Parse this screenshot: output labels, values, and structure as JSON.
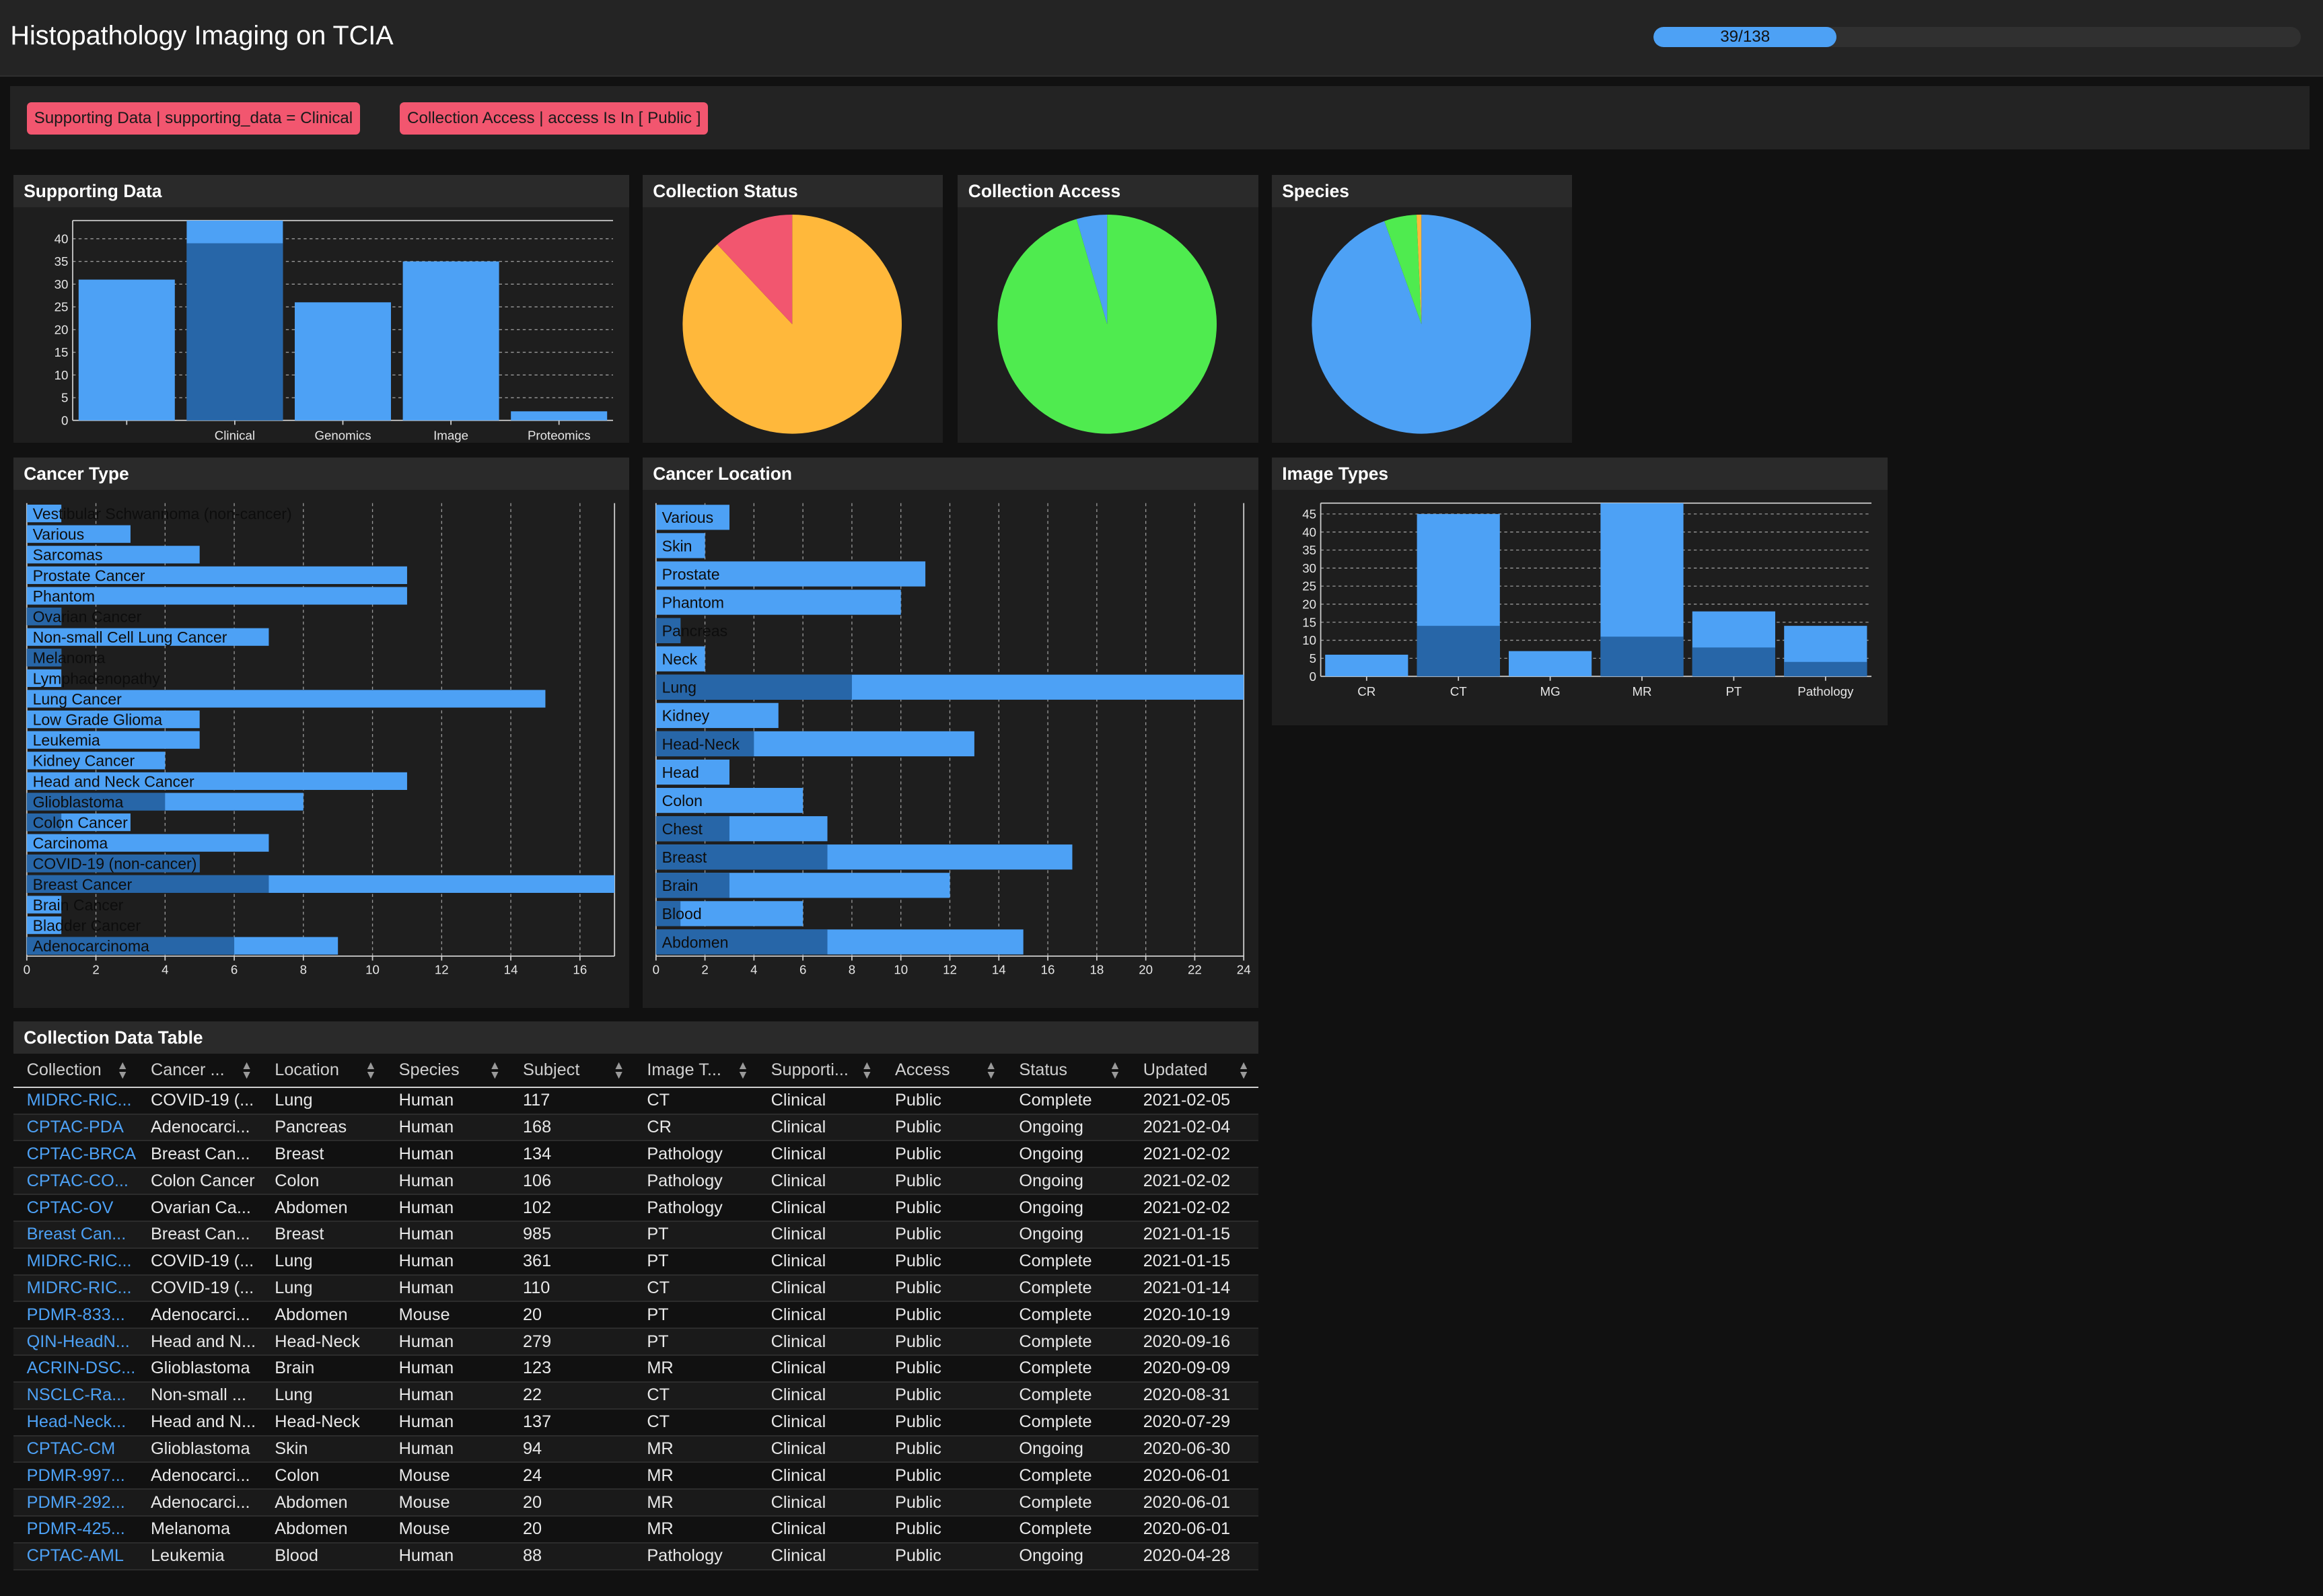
{
  "header": {
    "title": "Histopathology Imaging on TCIA",
    "progress_text": "39/138",
    "progress_value": 39,
    "progress_max": 138
  },
  "filters": [
    "Supporting Data | supporting_data = Clinical",
    "Collection Access | access Is In [ Public ]"
  ],
  "colors": {
    "blue": "#4da1f5",
    "dark_blue": "#2766a8",
    "orange": "#ffb83b",
    "pink": "#f2566f",
    "green": "#4feb4f",
    "chip": "#f2566f"
  },
  "supporting_data": {
    "title": "Supporting Data",
    "chart_data": {
      "type": "bar",
      "categories": [
        "",
        "Clinical",
        "Genomics",
        "Image",
        "Proteomics"
      ],
      "values": [
        31,
        44,
        26,
        35,
        2
      ],
      "highlight": [
        0,
        39,
        0,
        0,
        0
      ],
      "yticks": [
        0,
        5,
        10,
        15,
        20,
        25,
        30,
        35,
        40
      ],
      "ylim": [
        0,
        44
      ]
    }
  },
  "collection_status": {
    "title": "Collection Status",
    "chart_data": {
      "type": "pie",
      "slices": [
        {
          "value": 88,
          "color": "#ffb83b"
        },
        {
          "value": 12,
          "color": "#f2566f"
        }
      ]
    }
  },
  "collection_access": {
    "title": "Collection Access",
    "chart_data": {
      "type": "pie",
      "slices": [
        {
          "value": 95.5,
          "color": "#4feb4f"
        },
        {
          "value": 4.5,
          "color": "#4da1f5"
        }
      ]
    }
  },
  "species": {
    "title": "Species",
    "chart_data": {
      "type": "pie",
      "slices": [
        {
          "value": 94.5,
          "color": "#4da1f5"
        },
        {
          "value": 4.8,
          "color": "#4feb4f"
        },
        {
          "value": 0.7,
          "color": "#ffb83b"
        }
      ]
    }
  },
  "cancer_type": {
    "title": "Cancer Type",
    "chart_data": {
      "type": "bar",
      "orientation": "horizontal",
      "categories": [
        "Vestibular Schwannoma (non-cancer)",
        "Various",
        "Sarcomas",
        "Prostate Cancer",
        "Phantom",
        "Ovarian Cancer",
        "Non-small Cell Lung Cancer",
        "Melanoma",
        "Lymphadenopathy",
        "Lung Cancer",
        "Low Grade Glioma",
        "Leukemia",
        "Kidney Cancer",
        "Head and Neck Cancer",
        "Glioblastoma",
        "Colon Cancer",
        "Carcinoma",
        "COVID-19 (non-cancer)",
        "Breast Cancer",
        "Brain Cancer",
        "Bladder Cancer",
        "Adenocarcinoma"
      ],
      "values": [
        1,
        3,
        5,
        11,
        11,
        1,
        7,
        1,
        1,
        15,
        5,
        5,
        4,
        11,
        8,
        3,
        7,
        5,
        17,
        1,
        1,
        9
      ],
      "highlight": [
        0,
        0,
        0,
        0,
        0,
        1,
        0,
        1,
        0,
        0,
        0,
        0,
        0,
        0,
        4,
        1,
        0,
        5,
        7,
        0,
        0,
        6
      ],
      "xticks": [
        0,
        2,
        4,
        6,
        8,
        10,
        12,
        14,
        16
      ],
      "xlim": [
        0,
        17
      ]
    }
  },
  "cancer_location": {
    "title": "Cancer Location",
    "chart_data": {
      "type": "bar",
      "orientation": "horizontal",
      "categories": [
        "Various",
        "Skin",
        "Prostate",
        "Phantom",
        "Pancreas",
        "Neck",
        "Lung",
        "Kidney",
        "Head-Neck",
        "Head",
        "Colon",
        "Chest",
        "Breast",
        "Brain",
        "Blood",
        "Abdomen"
      ],
      "values": [
        3,
        2,
        11,
        10,
        1,
        2,
        24,
        5,
        13,
        3,
        6,
        7,
        17,
        12,
        6,
        15
      ],
      "highlight": [
        0,
        0,
        0,
        0,
        1,
        0,
        8,
        0,
        4,
        0,
        0,
        3,
        7,
        3,
        1,
        7
      ],
      "xticks": [
        0,
        2,
        4,
        6,
        8,
        10,
        12,
        14,
        16,
        18,
        20,
        22,
        24
      ],
      "xlim": [
        0,
        24
      ]
    }
  },
  "image_types": {
    "title": "Image Types",
    "chart_data": {
      "type": "bar",
      "categories": [
        "CR",
        "CT",
        "MG",
        "MR",
        "PT",
        "Pathology"
      ],
      "values": [
        6,
        45,
        7,
        48,
        18,
        14
      ],
      "highlight": [
        0,
        14,
        0,
        11,
        8,
        4
      ],
      "yticks": [
        0,
        5,
        10,
        15,
        20,
        25,
        30,
        35,
        40,
        45
      ],
      "ylim": [
        0,
        48
      ]
    }
  },
  "table": {
    "title": "Collection Data Table",
    "columns": [
      "Collection",
      "Cancer ...",
      "Location",
      "Species",
      "Subject",
      "Image T...",
      "Supporti...",
      "Access",
      "Status",
      "Updated"
    ],
    "rows": [
      [
        "MIDRC-RIC...",
        "COVID-19 (...",
        "Lung",
        "Human",
        "117",
        "CT",
        "Clinical",
        "Public",
        "Complete",
        "2021-02-05"
      ],
      [
        "CPTAC-PDA",
        "Adenocarci...",
        "Pancreas",
        "Human",
        "168",
        "CR",
        "Clinical",
        "Public",
        "Ongoing",
        "2021-02-04"
      ],
      [
        "CPTAC-BRCA",
        "Breast Can...",
        "Breast",
        "Human",
        "134",
        "Pathology",
        "Clinical",
        "Public",
        "Ongoing",
        "2021-02-02"
      ],
      [
        "CPTAC-CO...",
        "Colon Cancer",
        "Colon",
        "Human",
        "106",
        "Pathology",
        "Clinical",
        "Public",
        "Ongoing",
        "2021-02-02"
      ],
      [
        "CPTAC-OV",
        "Ovarian Ca...",
        "Abdomen",
        "Human",
        "102",
        "Pathology",
        "Clinical",
        "Public",
        "Ongoing",
        "2021-02-02"
      ],
      [
        "Breast Can...",
        "Breast Can...",
        "Breast",
        "Human",
        "985",
        "PT",
        "Clinical",
        "Public",
        "Ongoing",
        "2021-01-15"
      ],
      [
        "MIDRC-RIC...",
        "COVID-19 (...",
        "Lung",
        "Human",
        "361",
        "PT",
        "Clinical",
        "Public",
        "Complete",
        "2021-01-15"
      ],
      [
        "MIDRC-RIC...",
        "COVID-19 (...",
        "Lung",
        "Human",
        "110",
        "CT",
        "Clinical",
        "Public",
        "Complete",
        "2021-01-14"
      ],
      [
        "PDMR-833...",
        "Adenocarci...",
        "Abdomen",
        "Mouse",
        "20",
        "PT",
        "Clinical",
        "Public",
        "Complete",
        "2020-10-19"
      ],
      [
        "QIN-HeadN...",
        "Head and N...",
        "Head-Neck",
        "Human",
        "279",
        "PT",
        "Clinical",
        "Public",
        "Complete",
        "2020-09-16"
      ],
      [
        "ACRIN-DSC...",
        "Glioblastoma",
        "Brain",
        "Human",
        "123",
        "MR",
        "Clinical",
        "Public",
        "Complete",
        "2020-09-09"
      ],
      [
        "NSCLC-Ra...",
        "Non-small ...",
        "Lung",
        "Human",
        "22",
        "CT",
        "Clinical",
        "Public",
        "Complete",
        "2020-08-31"
      ],
      [
        "Head-Neck...",
        "Head and N...",
        "Head-Neck",
        "Human",
        "137",
        "CT",
        "Clinical",
        "Public",
        "Complete",
        "2020-07-29"
      ],
      [
        "CPTAC-CM",
        "Glioblastoma",
        "Skin",
        "Human",
        "94",
        "MR",
        "Clinical",
        "Public",
        "Ongoing",
        "2020-06-30"
      ],
      [
        "PDMR-997...",
        "Adenocarci...",
        "Colon",
        "Mouse",
        "24",
        "MR",
        "Clinical",
        "Public",
        "Complete",
        "2020-06-01"
      ],
      [
        "PDMR-292...",
        "Adenocarci...",
        "Abdomen",
        "Mouse",
        "20",
        "MR",
        "Clinical",
        "Public",
        "Complete",
        "2020-06-01"
      ],
      [
        "PDMR-425...",
        "Melanoma",
        "Abdomen",
        "Mouse",
        "20",
        "MR",
        "Clinical",
        "Public",
        "Complete",
        "2020-06-01"
      ],
      [
        "CPTAC-AML",
        "Leukemia",
        "Blood",
        "Human",
        "88",
        "Pathology",
        "Clinical",
        "Public",
        "Ongoing",
        "2020-04-28"
      ]
    ]
  }
}
